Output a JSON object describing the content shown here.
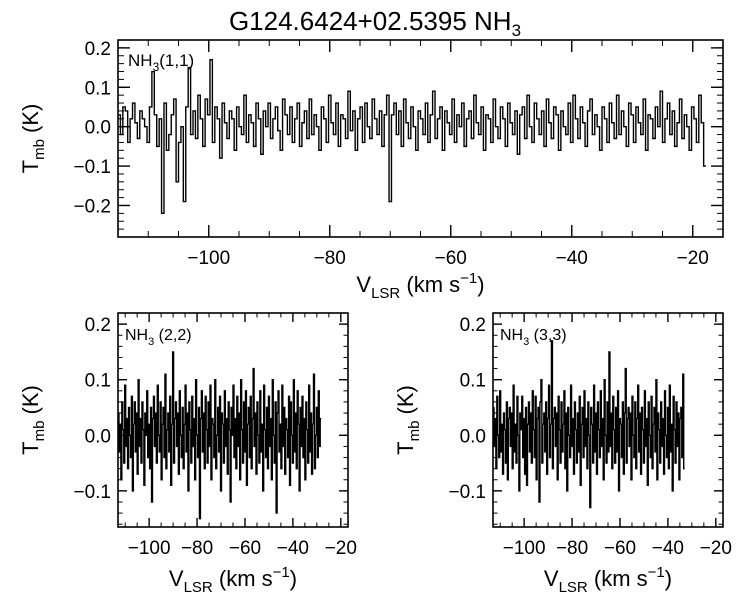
{
  "title": {
    "main": "G124.6424+02.5395 NH",
    "sub": "3"
  },
  "axis_text": {
    "y_label_main": "T",
    "y_label_sub": "mb",
    "y_label_unit": " (K)",
    "x_label_main": "V",
    "x_label_sub": "LSR",
    "x_label_unit": " (km s",
    "x_label_exp": "−1",
    "x_label_close": ")"
  },
  "chart_data": [
    {
      "type": "line",
      "panel": "NH3(1,1)",
      "label_main": "NH",
      "label_sub": "3",
      "label_tail": "(1,1)",
      "xlim": [
        -115,
        -15
      ],
      "ylim": [
        -0.28,
        0.22
      ],
      "xticks": [
        -100,
        -80,
        -60,
        -40,
        -20
      ],
      "yticks": [
        -0.2,
        -0.1,
        0.0,
        0.1,
        0.2
      ],
      "xtick_labels": [
        "−100",
        "−80",
        "−60",
        "−40",
        "−20"
      ],
      "ytick_labels": [
        "−0.2",
        "−0.1",
        "0.0",
        "0.1",
        "0.2"
      ],
      "x_start": -115,
      "x_step": 0.4,
      "y": [
        0.03,
        -0.02,
        0.05,
        0.04,
        -0.04,
        0.02,
        0.06,
        0.01,
        -0.03,
        0.04,
        0.02,
        0.0,
        -0.04,
        0.05,
        0.14,
        0.03,
        -0.05,
        0.02,
        -0.22,
        0.06,
        -0.06,
        -0.02,
        0.03,
        0.07,
        -0.14,
        -0.04,
        0.0,
        -0.19,
        0.05,
        0.15,
        -0.02,
        0.04,
        -0.03,
        0.08,
        0.02,
        -0.05,
        0.07,
        0.03,
        0.17,
        -0.04,
        0.05,
        0.02,
        -0.08,
        0.06,
        0.01,
        -0.03,
        0.04,
        0.02,
        -0.06,
        0.05,
        0.0,
        -0.02,
        0.08,
        -0.04,
        0.03,
        0.01,
        -0.05,
        0.06,
        0.02,
        -0.07,
        0.04,
        0.0,
        0.06,
        -0.03,
        0.02,
        0.05,
        -0.01,
        -0.06,
        0.07,
        0.03,
        -0.02,
        0.05,
        -0.04,
        0.02,
        0.06,
        -0.05,
        0.01,
        0.04,
        -0.03,
        0.07,
        -0.02,
        0.03,
        0.0,
        -0.06,
        0.05,
        0.02,
        -0.04,
        0.08,
        0.01,
        -0.02,
        0.06,
        -0.05,
        0.03,
        0.02,
        -0.03,
        0.09,
        -0.01,
        0.04,
        -0.06,
        0.02,
        0.05,
        -0.04,
        0.06,
        0.0,
        -0.03,
        0.07,
        0.02,
        -0.02,
        0.04,
        -0.05,
        0.03,
        0.08,
        -0.19,
        0.03,
        0.06,
        -0.02,
        0.04,
        -0.05,
        0.07,
        0.01,
        -0.03,
        0.05,
        0.0,
        -0.06,
        0.04,
        0.02,
        -0.02,
        0.06,
        -0.04,
        0.03,
        0.09,
        -0.03,
        0.02,
        0.05,
        -0.06,
        0.04,
        0.01,
        -0.02,
        0.07,
        -0.04,
        0.03,
        0.0,
        0.06,
        -0.05,
        0.02,
        0.04,
        -0.03,
        0.08,
        0.01,
        -0.02,
        0.05,
        -0.06,
        0.03,
        0.02,
        -0.04,
        0.07,
        0.0,
        -0.03,
        0.05,
        0.02,
        -0.05,
        0.06,
        0.01,
        -0.02,
        0.04,
        -0.07,
        0.03,
        0.05,
        -0.03,
        0.08,
        0.0,
        -0.04,
        0.06,
        0.02,
        -0.02,
        0.04,
        -0.05,
        0.07,
        0.01,
        -0.03,
        0.05,
        0.03,
        -0.06,
        0.04,
        0.0,
        -0.02,
        0.06,
        -0.04,
        0.08,
        0.02,
        -0.03,
        0.05,
        0.01,
        -0.05,
        0.04,
        0.07,
        -0.02,
        0.03,
        0.0,
        -0.06,
        0.05,
        0.02,
        -0.04,
        0.06,
        0.01,
        -0.03,
        0.08,
        -0.02,
        0.04,
        0.0,
        -0.05,
        0.06,
        0.03,
        -0.04,
        0.05,
        0.01,
        -0.02,
        0.07,
        -0.06,
        0.03,
        0.02,
        -0.03,
        0.05,
        0.0,
        0.09,
        -0.04,
        0.02,
        0.06,
        -0.02,
        0.04,
        -0.05,
        0.01,
        0.07,
        -0.03,
        0.03,
        0.0,
        -0.06,
        0.05,
        0.02,
        -0.04,
        0.08,
        0.01,
        -0.1
      ]
    },
    {
      "type": "line",
      "panel": "NH3(2,2)",
      "label_main": "NH",
      "label_sub": "3",
      "label_tail": " (2,2)",
      "xlim": [
        -113,
        -17
      ],
      "ylim": [
        -0.165,
        0.22
      ],
      "xticks": [
        -100,
        -80,
        -60,
        -40,
        -20
      ],
      "yticks": [
        -0.1,
        0.0,
        0.1,
        0.2
      ],
      "xtick_labels": [
        "−100",
        "−80",
        "−60",
        "−40",
        "−20"
      ],
      "ytick_labels": [
        "−0.1",
        "0.0",
        "0.1",
        "0.2"
      ],
      "x_start": -113,
      "x_step": 0.4,
      "y": [
        0.04,
        -0.03,
        0.02,
        -0.08,
        0.06,
        0.01,
        -0.05,
        0.09,
        -0.02,
        0.03,
        -0.06,
        0.05,
        0.0,
        -0.04,
        0.07,
        -0.1,
        0.02,
        0.06,
        -0.03,
        0.04,
        -0.07,
        0.1,
        -0.02,
        0.03,
        -0.05,
        0.06,
        0.01,
        -0.09,
        0.04,
        0.0,
        0.08,
        -0.04,
        0.02,
        -0.06,
        0.05,
        -0.12,
        0.03,
        0.07,
        -0.02,
        0.04,
        -0.05,
        0.09,
        0.0,
        -0.03,
        0.06,
        -0.08,
        0.02,
        0.05,
        -0.04,
        0.11,
        -0.06,
        0.01,
        0.04,
        -0.03,
        0.07,
        -0.09,
        0.02,
        0.15,
        -0.05,
        0.03,
        0.06,
        -0.02,
        0.04,
        -0.07,
        0.08,
        0.0,
        -0.04,
        0.05,
        -0.06,
        0.02,
        0.09,
        -0.03,
        0.04,
        -0.1,
        0.06,
        0.01,
        -0.05,
        0.07,
        -0.02,
        0.03,
        -0.08,
        0.1,
        0.0,
        -0.04,
        0.05,
        -0.15,
        0.03,
        0.08,
        -0.03,
        0.04,
        -0.06,
        0.07,
        0.01,
        -0.05,
        0.06,
        -0.02,
        0.09,
        -0.08,
        0.03,
        0.02,
        -0.04,
        0.1,
        -0.06,
        0.0,
        0.05,
        -0.03,
        0.07,
        -0.1,
        0.04,
        0.02,
        -0.05,
        0.08,
        -0.02,
        0.03,
        -0.07,
        0.06,
        0.01,
        -0.12,
        0.05,
        0.0,
        0.09,
        -0.04,
        0.03,
        -0.06,
        0.07,
        -0.02,
        0.04,
        -0.08,
        0.1,
        0.01,
        -0.05,
        0.06,
        -0.03,
        0.08,
        -0.09,
        0.02,
        0.05,
        -0.04,
        0.07,
        -0.06,
        0.03,
        0.12,
        -0.02,
        0.04,
        -0.07,
        0.06,
        0.0,
        -0.05,
        0.08,
        -0.03,
        0.02,
        -0.1,
        0.09,
        0.01,
        -0.04,
        0.05,
        -0.06,
        0.07,
        -0.02,
        0.03,
        -0.08,
        0.1,
        0.0,
        -0.05,
        0.06,
        -0.14,
        0.04,
        0.08,
        -0.03,
        0.02,
        -0.06,
        0.09,
        -0.02,
        0.05,
        -0.07,
        0.03,
        0.01,
        -0.04,
        0.07,
        -0.09,
        0.06,
        0.0,
        -0.05,
        0.1,
        -0.03,
        0.04,
        -0.06,
        0.08,
        0.02,
        -0.1,
        0.05,
        -0.02,
        0.07,
        -0.04,
        0.03,
        -0.08,
        0.06,
        0.01,
        -0.05,
        0.09,
        -0.03,
        0.04,
        -0.07,
        0.02,
        0.11,
        -0.06,
        0.0,
        0.05,
        -0.04,
        0.08,
        -0.02,
        0.03
      ]
    },
    {
      "type": "line",
      "panel": "NH3(3,3)",
      "label_main": "NH",
      "label_sub": "3",
      "label_tail": " (3,3)",
      "xlim": [
        -113,
        -17
      ],
      "ylim": [
        -0.165,
        0.22
      ],
      "xticks": [
        -100,
        -80,
        -60,
        -40,
        -20
      ],
      "yticks": [
        -0.1,
        0.0,
        0.1,
        0.2
      ],
      "xtick_labels": [
        "−100",
        "−80",
        "−60",
        "−40",
        "−20"
      ],
      "ytick_labels": [
        "−0.1",
        "0.0",
        "0.1",
        "0.2"
      ],
      "x_start": -113,
      "x_step": 0.4,
      "y": [
        0.05,
        -0.02,
        0.03,
        -0.06,
        0.07,
        0.0,
        -0.04,
        0.08,
        -0.03,
        0.02,
        -0.07,
        0.04,
        0.01,
        -0.05,
        0.06,
        -0.08,
        0.03,
        0.05,
        -0.02,
        0.04,
        -0.06,
        0.09,
        -0.03,
        0.02,
        -0.05,
        0.07,
        0.0,
        -0.1,
        0.04,
        0.01,
        0.07,
        -0.04,
        0.03,
        -0.07,
        0.05,
        -0.09,
        0.02,
        0.06,
        -0.03,
        0.04,
        -0.05,
        0.08,
        0.01,
        -0.04,
        0.07,
        -0.08,
        0.03,
        0.05,
        -0.12,
        0.06,
        0.1,
        -0.05,
        0.02,
        0.04,
        -0.03,
        0.06,
        -0.07,
        0.03,
        0.09,
        -0.04,
        0.02,
        0.17,
        -0.06,
        0.03,
        0.05,
        -0.02,
        0.04,
        -0.08,
        0.07,
        0.01,
        -0.05,
        0.06,
        -0.03,
        0.02,
        0.08,
        -0.06,
        0.04,
        -0.1,
        0.05,
        0.0,
        -0.04,
        0.09,
        -0.02,
        0.03,
        -0.07,
        0.06,
        0.01,
        -0.05,
        0.04,
        -0.03,
        0.07,
        -0.09,
        0.02,
        0.05,
        -0.04,
        0.08,
        -0.02,
        0.03,
        -0.06,
        0.06,
        0.0,
        -0.13,
        0.05,
        0.02,
        -0.05,
        0.09,
        -0.03,
        0.04,
        -0.07,
        0.06,
        0.01,
        -0.04,
        0.08,
        -0.02,
        0.03,
        -0.08,
        0.1,
        0.0,
        -0.05,
        0.06,
        -0.03,
        0.15,
        -0.02,
        0.04,
        -0.06,
        0.07,
        0.01,
        -0.05,
        0.05,
        -0.03,
        0.08,
        -0.1,
        0.03,
        0.02,
        -0.04,
        0.06,
        -0.07,
        0.04,
        0.12,
        -0.05,
        0.03,
        0.05,
        -0.02,
        0.04,
        -0.08,
        0.07,
        0.0,
        -0.04,
        0.06,
        -0.06,
        0.03,
        0.09,
        -0.03,
        0.04,
        -0.07,
        0.05,
        0.01,
        -0.05,
        0.08,
        -0.02,
        0.03,
        -0.09,
        0.06,
        0.0,
        -0.04,
        0.07,
        -0.06,
        0.02,
        0.05,
        -0.03,
        0.1,
        -0.08,
        0.04,
        0.01,
        -0.05,
        0.06,
        -0.02,
        0.03,
        -0.07,
        0.08,
        0.0,
        -0.04,
        0.05,
        -0.06,
        0.09,
        -0.03,
        0.02,
        -0.1,
        0.07,
        0.01,
        -0.05,
        0.06,
        -0.02,
        0.04,
        -0.08,
        0.03,
        0.05,
        -0.04,
        0.11,
        -0.06
      ]
    }
  ]
}
